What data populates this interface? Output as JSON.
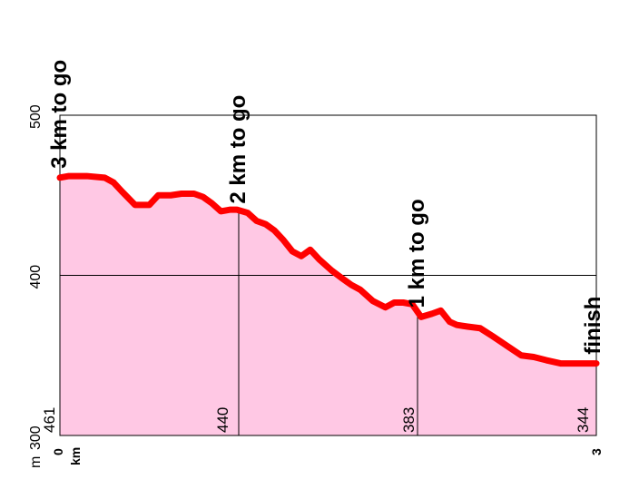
{
  "chart_data": {
    "type": "area",
    "xlabel": "km",
    "ylabel": "m",
    "xlim": [
      0,
      3
    ],
    "ylim": [
      300,
      500
    ],
    "x_tick_labels": [
      "0",
      "3"
    ],
    "y_tick_labels": [
      "300",
      "400",
      "500"
    ],
    "grid": true,
    "colors": {
      "fill": "#ffc8e4",
      "line": "#ff0000",
      "grid": "#000000"
    },
    "series": [
      {
        "x": [
          0.0,
          0.05,
          0.15,
          0.25,
          0.3,
          0.35,
          0.42,
          0.5,
          0.55,
          0.62,
          0.68,
          0.75,
          0.8,
          0.85,
          0.9,
          0.95,
          0.99,
          1.05,
          1.1,
          1.15,
          1.2,
          1.25,
          1.3,
          1.35,
          1.4,
          1.45,
          1.52,
          1.58,
          1.63,
          1.68,
          1.75,
          1.82,
          1.87,
          1.92,
          1.97,
          2.02,
          2.08,
          2.13,
          2.18,
          2.22,
          2.28,
          2.35,
          2.42,
          2.5,
          2.58,
          2.65,
          2.72,
          2.8,
          2.9,
          3.0
        ],
        "y": [
          461,
          462,
          462,
          461,
          458,
          452,
          444,
          444,
          450,
          450,
          451,
          451,
          449,
          445,
          440,
          441,
          441,
          439,
          434,
          432,
          428,
          422,
          415,
          412,
          416,
          410,
          403,
          398,
          394,
          391,
          384,
          380,
          383,
          383,
          382,
          374,
          376,
          378,
          371,
          369,
          368,
          367,
          362,
          356,
          350,
          349,
          347,
          345,
          345,
          345
        ]
      }
    ],
    "markers": [
      {
        "km": 0,
        "elevation": "461",
        "label": "3 km to go"
      },
      {
        "km": 1,
        "elevation": "440",
        "label": "2 km to go"
      },
      {
        "km": 2,
        "elevation": "383",
        "label": "1 km to go"
      },
      {
        "km": 3,
        "elevation": "344",
        "label": "finish"
      }
    ]
  }
}
